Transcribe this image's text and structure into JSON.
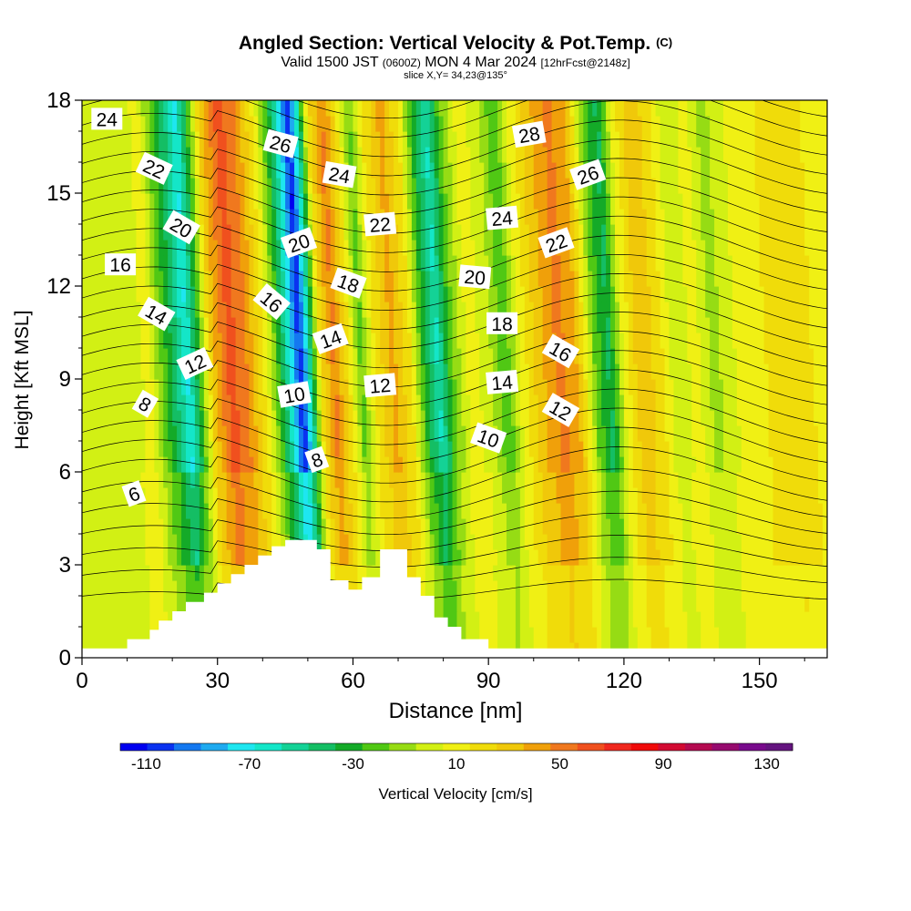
{
  "title": {
    "main": "Angled Section: Vertical Velocity & Pot.Temp.",
    "main_tag": "(C)",
    "sub_valid": "Valid 1500 JST",
    "sub_z": "(0600Z)",
    "sub_date": "MON 4 Mar 2024",
    "sub_fcst": "[12hrFcst@2148z]",
    "slice": "slice X,Y= 34,23@135°"
  },
  "chart_data": {
    "type": "heatmap",
    "xlabel": "Distance [nm]",
    "ylabel": "Height [Kft MSL]",
    "xlim": [
      0,
      165
    ],
    "ylim": [
      0,
      18
    ],
    "x_ticks": [
      0,
      30,
      60,
      90,
      120,
      150
    ],
    "y_ticks": [
      0,
      3,
      6,
      9,
      12,
      15,
      18
    ],
    "colorbar": {
      "label": "Vertical Velocity [cm/s]",
      "tick_labels": [
        -110,
        -70,
        -30,
        10,
        50,
        90,
        130
      ],
      "range": [
        -120,
        140
      ],
      "colors": [
        "#0000f0",
        "#0a32f0",
        "#1478f0",
        "#1eaaf0",
        "#1ee6f0",
        "#14e6c8",
        "#14d296",
        "#14be64",
        "#14aa28",
        "#50c814",
        "#96dc14",
        "#d2f014",
        "#f0f014",
        "#f0dc0a",
        "#f0c80a",
        "#f0a00a",
        "#f0781e",
        "#f0501e",
        "#f0281e",
        "#f00a0a",
        "#d20a32",
        "#b40a50",
        "#960a6e",
        "#780a8c",
        "#64147f"
      ]
    },
    "terrain_profile": [
      [
        0,
        0.3
      ],
      [
        10,
        0.3
      ],
      [
        10,
        0.6
      ],
      [
        15,
        0.6
      ],
      [
        15,
        0.9
      ],
      [
        17,
        0.9
      ],
      [
        17,
        1.2
      ],
      [
        20,
        1.2
      ],
      [
        20,
        1.5
      ],
      [
        23,
        1.5
      ],
      [
        23,
        1.8
      ],
      [
        27,
        1.8
      ],
      [
        27,
        2.1
      ],
      [
        30,
        2.1
      ],
      [
        30,
        2.4
      ],
      [
        33,
        2.4
      ],
      [
        33,
        2.7
      ],
      [
        36,
        2.7
      ],
      [
        36,
        3.0
      ],
      [
        39,
        3.0
      ],
      [
        39,
        3.3
      ],
      [
        42,
        3.3
      ],
      [
        42,
        3.6
      ],
      [
        45,
        3.6
      ],
      [
        45,
        3.8
      ],
      [
        52,
        3.8
      ],
      [
        52,
        3.5
      ],
      [
        55,
        3.5
      ],
      [
        55,
        2.5
      ],
      [
        59,
        2.5
      ],
      [
        59,
        2.2
      ],
      [
        62,
        2.2
      ],
      [
        62,
        2.6
      ],
      [
        66,
        2.6
      ],
      [
        66,
        3.5
      ],
      [
        72,
        3.5
      ],
      [
        72,
        2.6
      ],
      [
        75,
        2.6
      ],
      [
        75,
        2.0
      ],
      [
        78,
        2.0
      ],
      [
        78,
        1.3
      ],
      [
        81,
        1.3
      ],
      [
        81,
        1.0
      ],
      [
        84,
        1.0
      ],
      [
        84,
        0.6
      ],
      [
        90,
        0.6
      ],
      [
        90,
        0.3
      ],
      [
        165,
        0.3
      ]
    ],
    "velocity_bands": [
      {
        "x": 0,
        "w": 0
      },
      {
        "x": 12,
        "w": 0
      },
      {
        "x": 15,
        "w": 10
      },
      {
        "x": 18,
        "w": -20
      },
      {
        "x": 21,
        "w": -45
      },
      {
        "x": 23.5,
        "w": -70
      },
      {
        "x": 26,
        "w": -30
      },
      {
        "x": 29,
        "w": 30
      },
      {
        "x": 33,
        "w": 62
      },
      {
        "x": 37,
        "w": 45
      },
      {
        "x": 41,
        "w": 10
      },
      {
        "x": 44,
        "w": -30
      },
      {
        "x": 46.5,
        "w": -70
      },
      {
        "x": 48.5,
        "w": -110
      },
      {
        "x": 50.5,
        "w": -60
      },
      {
        "x": 53,
        "w": 20
      },
      {
        "x": 56,
        "w": 50
      },
      {
        "x": 59,
        "w": 20
      },
      {
        "x": 62,
        "w": -20
      },
      {
        "x": 65,
        "w": 15
      },
      {
        "x": 69,
        "w": 40
      },
      {
        "x": 73,
        "w": 15
      },
      {
        "x": 76,
        "w": -30
      },
      {
        "x": 79,
        "w": -60
      },
      {
        "x": 82,
        "w": -20
      },
      {
        "x": 86,
        "w": 10
      },
      {
        "x": 90,
        "w": 0
      },
      {
        "x": 94,
        "w": -25
      },
      {
        "x": 97,
        "w": 5
      },
      {
        "x": 101,
        "w": 30
      },
      {
        "x": 106,
        "w": 50
      },
      {
        "x": 110,
        "w": 35
      },
      {
        "x": 114,
        "w": -20
      },
      {
        "x": 117,
        "w": -40
      },
      {
        "x": 120,
        "w": 5
      },
      {
        "x": 124,
        "w": 35
      },
      {
        "x": 128,
        "w": 20
      },
      {
        "x": 132,
        "w": -5
      },
      {
        "x": 136,
        "w": 10
      },
      {
        "x": 140,
        "w": -10
      },
      {
        "x": 145,
        "w": 5
      },
      {
        "x": 150,
        "w": 12
      },
      {
        "x": 154,
        "w": 20
      },
      {
        "x": 158,
        "w": 25
      },
      {
        "x": 162,
        "w": 15
      },
      {
        "x": 165,
        "w": 10
      }
    ],
    "theta_contour_labels": [
      {
        "text": "24",
        "x": 5.5,
        "y": 17.4,
        "angle": 0
      },
      {
        "text": "22",
        "x": 16,
        "y": 15.8,
        "angle": 25
      },
      {
        "text": "20",
        "x": 22,
        "y": 13.9,
        "angle": 30
      },
      {
        "text": "16",
        "x": 8.5,
        "y": 12.7,
        "angle": 0
      },
      {
        "text": "14",
        "x": 16.5,
        "y": 11.1,
        "angle": 30
      },
      {
        "text": "12",
        "x": 25,
        "y": 9.5,
        "angle": -25
      },
      {
        "text": "8",
        "x": 14,
        "y": 8.2,
        "angle": 30
      },
      {
        "text": "6",
        "x": 11.5,
        "y": 5.3,
        "angle": -20
      },
      {
        "text": "26",
        "x": 44,
        "y": 16.6,
        "angle": 15
      },
      {
        "text": "24",
        "x": 57,
        "y": 15.6,
        "angle": 10
      },
      {
        "text": "20",
        "x": 48,
        "y": 13.4,
        "angle": -20
      },
      {
        "text": "16",
        "x": 42,
        "y": 11.5,
        "angle": 40
      },
      {
        "text": "22",
        "x": 66,
        "y": 14.0,
        "angle": -5
      },
      {
        "text": "18",
        "x": 59,
        "y": 12.1,
        "angle": 20
      },
      {
        "text": "14",
        "x": 55,
        "y": 10.3,
        "angle": -20
      },
      {
        "text": "10",
        "x": 47,
        "y": 8.5,
        "angle": -10
      },
      {
        "text": "12",
        "x": 66,
        "y": 8.8,
        "angle": -5
      },
      {
        "text": "8",
        "x": 52,
        "y": 6.4,
        "angle": -20
      },
      {
        "text": "28",
        "x": 99,
        "y": 16.9,
        "angle": -10
      },
      {
        "text": "26",
        "x": 112,
        "y": 15.6,
        "angle": -20
      },
      {
        "text": "24",
        "x": 93,
        "y": 14.2,
        "angle": -5
      },
      {
        "text": "22",
        "x": 105,
        "y": 13.4,
        "angle": -20
      },
      {
        "text": "20",
        "x": 87,
        "y": 12.3,
        "angle": 5
      },
      {
        "text": "18",
        "x": 93,
        "y": 10.8,
        "angle": 0
      },
      {
        "text": "16",
        "x": 106,
        "y": 9.9,
        "angle": 30
      },
      {
        "text": "14",
        "x": 93,
        "y": 8.9,
        "angle": -5
      },
      {
        "text": "12",
        "x": 106,
        "y": 8.0,
        "angle": 30
      },
      {
        "text": "10",
        "x": 90,
        "y": 7.1,
        "angle": 20
      }
    ]
  }
}
